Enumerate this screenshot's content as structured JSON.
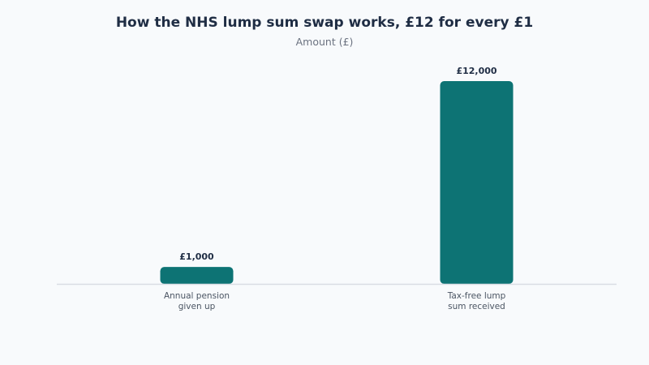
{
  "chart_data": {
    "type": "bar",
    "title": "How the NHS lump sum swap works, £12 for every £1",
    "subtitle": "Amount (£)",
    "categories": [
      [
        "Annual pension",
        "given up"
      ],
      [
        "Tax-free lump",
        "sum received"
      ]
    ],
    "values": [
      1000,
      12000
    ],
    "value_labels": [
      "£1,000",
      "£12,000"
    ],
    "ylim": [
      0,
      12000
    ],
    "grid": false,
    "bar_color": "#0d7374",
    "baseline_color": "#d9dde3"
  }
}
